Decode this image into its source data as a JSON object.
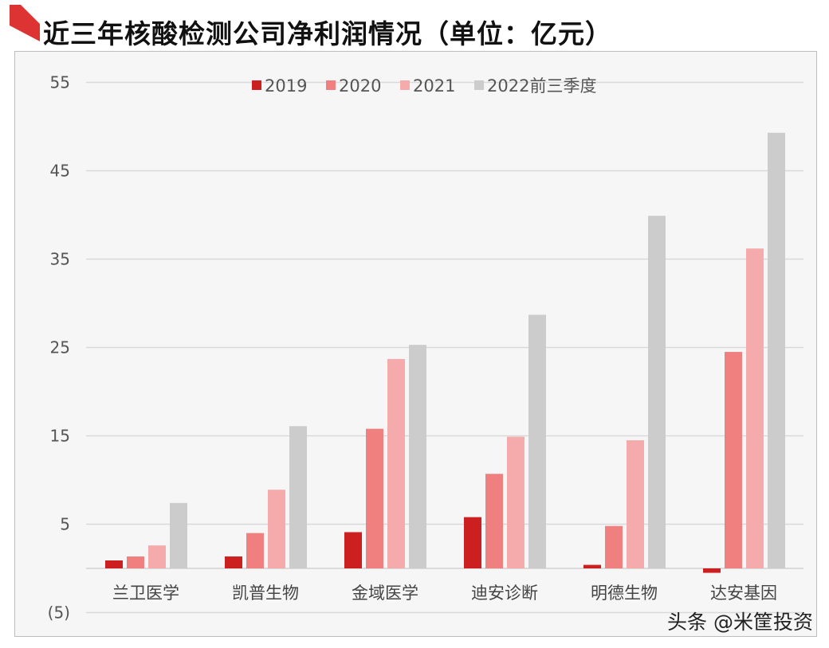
{
  "chart_data": {
    "type": "bar",
    "title": "近三年核酸检测公司净利润情况（单位：亿元）",
    "categories": [
      "兰卫医学",
      "凯普生物",
      "金域医学",
      "迪安诊断",
      "明德生物",
      "达安基因"
    ],
    "series": [
      {
        "name": "2019",
        "color": "#cc1f1f",
        "values": [
          0.9,
          1.35,
          4.1,
          5.8,
          0.4,
          -0.5
        ]
      },
      {
        "name": "2020",
        "color": "#f08080",
        "values": [
          1.35,
          4.0,
          15.8,
          10.7,
          4.8,
          24.5
        ]
      },
      {
        "name": "2021",
        "color": "#f5abab",
        "values": [
          2.6,
          8.9,
          23.7,
          14.9,
          14.5,
          36.2
        ]
      },
      {
        "name": "2022前三季度",
        "color": "#cccccc",
        "values": [
          7.4,
          16.1,
          25.3,
          28.7,
          39.9,
          49.3
        ]
      }
    ],
    "yticks": [
      55,
      45,
      35,
      25,
      15,
      5,
      -5
    ],
    "ytick_labels": [
      "55",
      "45",
      "35",
      "25",
      "15",
      "5",
      "(5)"
    ],
    "ylim": [
      -5,
      55
    ],
    "grid": true,
    "legend_position": "top-center",
    "xlabel": "",
    "ylabel": ""
  },
  "watermark": "头条 @米筐投资"
}
